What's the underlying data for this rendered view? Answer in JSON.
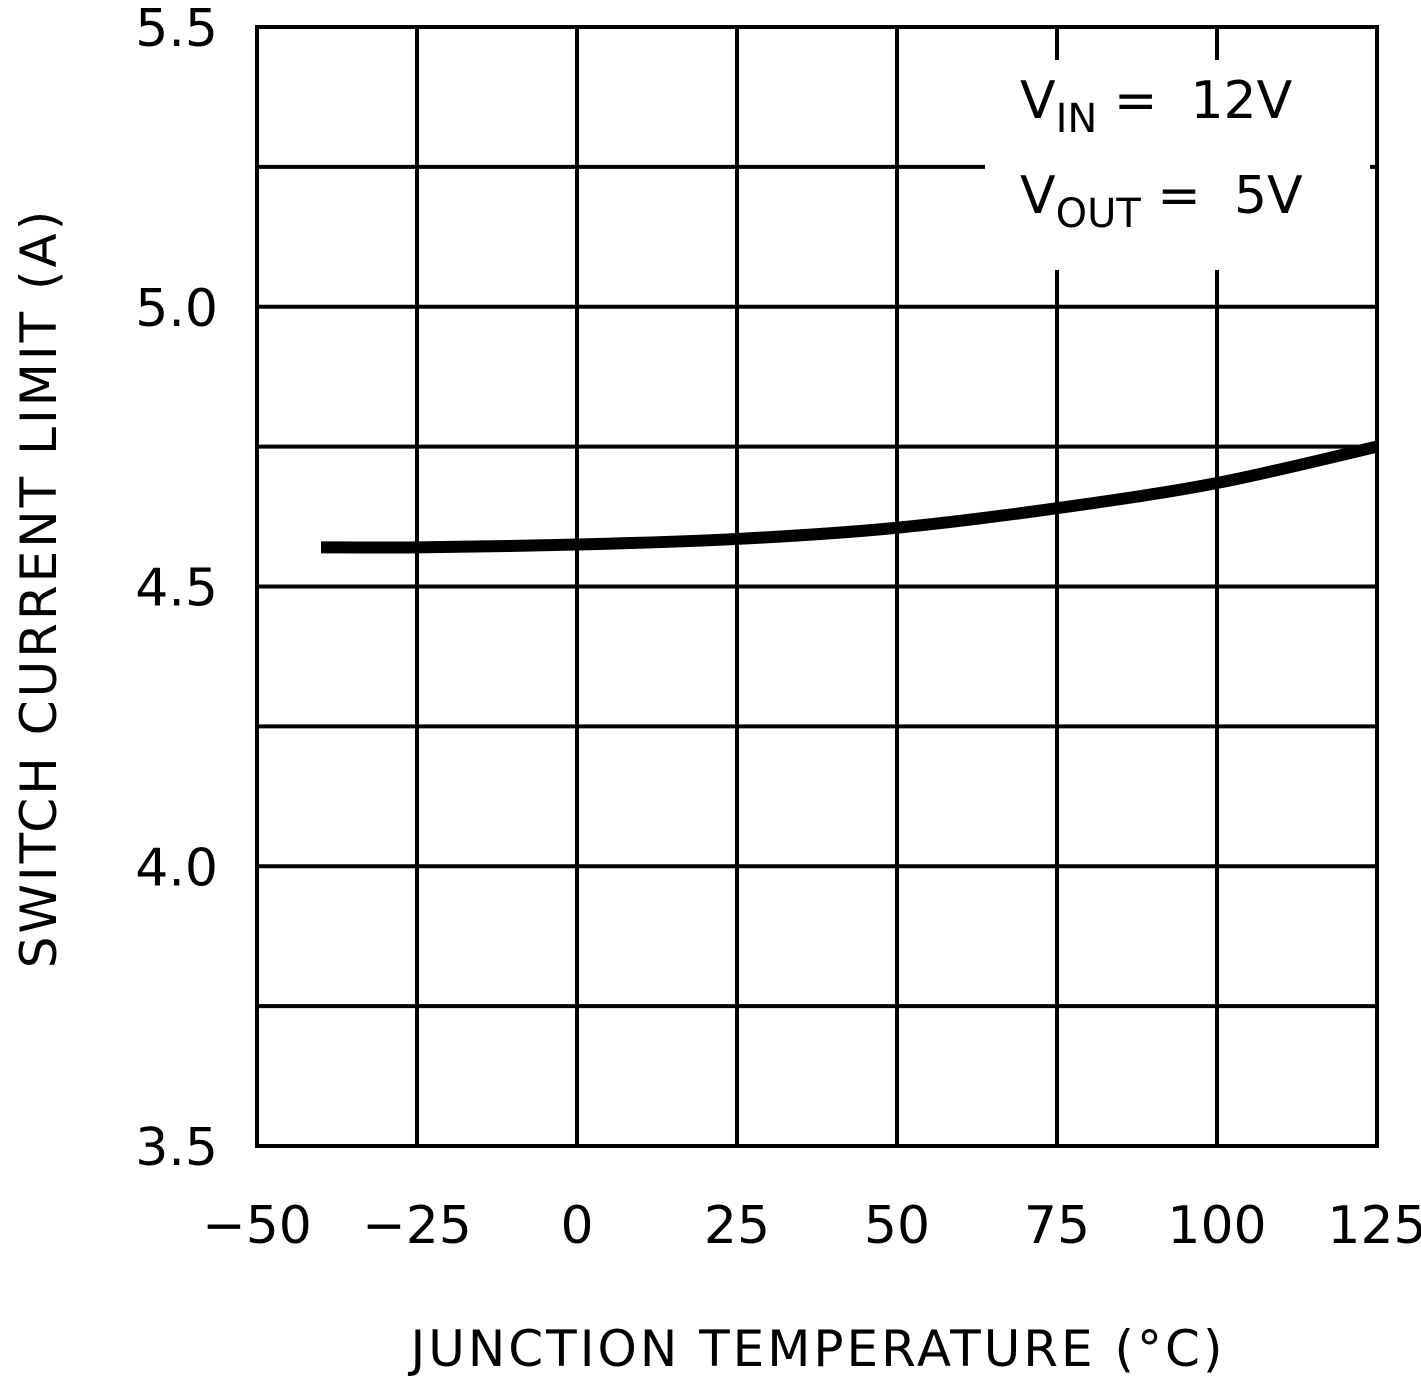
{
  "chart_data": {
    "type": "line",
    "title": "",
    "xlabel": "JUNCTION TEMPERATURE (°C)",
    "ylabel": "SWITCH CURRENT LIMIT (A)",
    "xlim": [
      -50,
      125
    ],
    "ylim": [
      3.5,
      5.5
    ],
    "grid": true,
    "x_ticks": [
      -50,
      -25,
      0,
      25,
      50,
      75,
      100,
      125
    ],
    "x_tick_labels": [
      "−50",
      "−25",
      "0",
      "25",
      "50",
      "75",
      "100",
      "125"
    ],
    "y_ticks": [
      3.5,
      4.0,
      4.5,
      5.0,
      5.5
    ],
    "y_tick_labels": [
      "3.5",
      "4.0",
      "4.5",
      "5.0",
      "5.5"
    ],
    "y_minor_gridlines": [
      3.75,
      4.25,
      4.75,
      5.25
    ],
    "annotations": [
      {
        "symbol": "V",
        "subscript": "IN",
        "text": " =  12V"
      },
      {
        "symbol": "V",
        "subscript": "OUT",
        "text": " =  5V"
      }
    ],
    "annotation_position": "top-right",
    "series": [
      {
        "x": [
          -40,
          -25,
          0,
          25,
          50,
          75,
          100,
          125
        ],
        "y": [
          4.57,
          4.57,
          4.575,
          4.585,
          4.605,
          4.64,
          4.685,
          4.75
        ]
      }
    ]
  }
}
